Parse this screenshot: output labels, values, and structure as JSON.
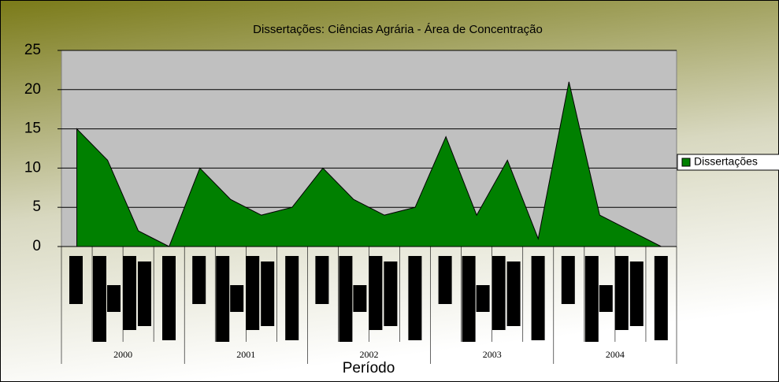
{
  "chart_data": {
    "type": "area",
    "title": "Dissertações: Ciências Agrária - Área de Concentração",
    "xlabel": "Período",
    "groups": [
      "2000",
      "2001",
      "2002",
      "2003",
      "2004"
    ],
    "categories": [
      null,
      null,
      null,
      null,
      null,
      null,
      null,
      null,
      null,
      null,
      null,
      null,
      null,
      null,
      null,
      null,
      null,
      null,
      null,
      null
    ],
    "series": [
      {
        "name": "Dissertações",
        "color": "#008000",
        "values": [
          15,
          11,
          2,
          0,
          10,
          6,
          4,
          5,
          10,
          6,
          4,
          5,
          14,
          4,
          11,
          1,
          21,
          4,
          2,
          0
        ]
      }
    ],
    "ylim": [
      0,
      25
    ],
    "yticks": [
      0,
      5,
      10,
      15,
      20,
      25
    ],
    "grid": true,
    "legend": "right"
  }
}
